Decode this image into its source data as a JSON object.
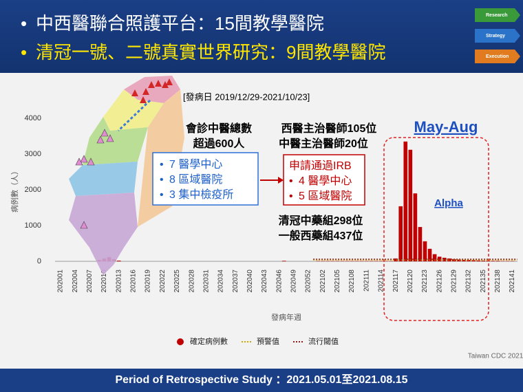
{
  "header": {
    "line1": "中西醫聯合照護平台：15間教學醫院",
    "line2": "清冠一號、二號真實世界研究：9間教學醫院",
    "icons": [
      "Research",
      "Strategy",
      "Execution"
    ]
  },
  "annotations": {
    "period": "[發病日 2019/12/29-2021/10/23]",
    "tcm_total_1": "會診中醫總數",
    "tcm_total_2": "超過600人",
    "box1": [
      "7 醫學中心",
      "8 區域醫院",
      "3 集中檢疫所"
    ],
    "doctors": [
      "西醫主治醫師105位",
      "中醫主治醫師20位"
    ],
    "box2_title": "申請通過IRB",
    "box2": [
      "4 醫學中心",
      "5 區域醫院"
    ],
    "groups": [
      "清冠中藥組298位",
      "一般西藥組437位"
    ],
    "highlight": "May-Aug",
    "variant": "Alpha",
    "source": "Taiwan CDC 2021"
  },
  "footer": "Period of  Retrospective Study ：2021.05.01至2021.08.15",
  "chart_data": {
    "type": "bar",
    "ylabel": "病例數（人）",
    "xlabel": "發病年週",
    "ylim": [
      0,
      4000
    ],
    "yticks": [
      0,
      1000,
      2000,
      3000,
      4000
    ],
    "categories": [
      "202001",
      null,
      null,
      "202004",
      null,
      null,
      "202007",
      null,
      null,
      "202010",
      null,
      null,
      "202013",
      null,
      null,
      "202016",
      null,
      null,
      "202019",
      null,
      null,
      "202022",
      null,
      null,
      "202025",
      null,
      null,
      "202028",
      null,
      null,
      "202031",
      null,
      null,
      "202034",
      null,
      null,
      "202037",
      null,
      null,
      "202040",
      null,
      null,
      "202043",
      null,
      null,
      "202046",
      null,
      null,
      "202049",
      null,
      null,
      "202052",
      null,
      null,
      "202102",
      null,
      null,
      "202105",
      null,
      null,
      "202108",
      null,
      null,
      "202111",
      null,
      null,
      "202114",
      null,
      null,
      "202117",
      null,
      null,
      "202120",
      null,
      null,
      "202123",
      null,
      null,
      "202126",
      null,
      null,
      "202129",
      null,
      null,
      "202132",
      null,
      null,
      "202135",
      null,
      null,
      "202138",
      null,
      null,
      "202141",
      null
    ],
    "series": [
      {
        "name": "確定病例數",
        "type": "bar",
        "color": "#c00000",
        "values": [
          0,
          0,
          0,
          0,
          0,
          0,
          0,
          0,
          40,
          80,
          120,
          60,
          20,
          0,
          0,
          0,
          0,
          0,
          0,
          0,
          0,
          0,
          0,
          0,
          0,
          0,
          0,
          0,
          0,
          0,
          0,
          0,
          0,
          0,
          0,
          0,
          0,
          0,
          0,
          0,
          0,
          0,
          0,
          0,
          0,
          0,
          15,
          0,
          0,
          0,
          0,
          0,
          0,
          10,
          10,
          10,
          10,
          10,
          10,
          10,
          10,
          10,
          10,
          10,
          10,
          10,
          10,
          10,
          10,
          80,
          1540,
          3350,
          3120,
          1900,
          960,
          560,
          350,
          200,
          130,
          100,
          80,
          60,
          50,
          40,
          35,
          30,
          25,
          20,
          20,
          15,
          15,
          10,
          10,
          10,
          0
        ]
      },
      {
        "name": "預警值",
        "type": "line",
        "color": "#c9a800",
        "values": [
          null,
          null,
          null,
          null,
          null,
          null,
          null,
          null,
          null,
          null,
          null,
          null,
          null,
          null,
          null,
          null,
          null,
          null,
          null,
          null,
          null,
          null,
          null,
          null,
          null,
          null,
          null,
          null,
          null,
          null,
          null,
          null,
          null,
          null,
          null,
          null,
          null,
          null,
          null,
          null,
          null,
          null,
          null,
          null,
          null,
          null,
          null,
          null,
          null,
          null,
          null,
          null,
          40,
          40,
          40,
          40,
          40,
          40,
          40,
          40,
          40,
          40,
          40,
          40,
          40,
          40,
          40,
          40,
          40,
          40,
          40,
          40,
          40,
          40,
          40,
          40,
          40,
          40,
          40,
          40,
          40,
          40,
          40,
          40,
          40,
          40,
          40,
          40,
          40,
          40,
          40,
          40,
          40,
          40,
          40
        ]
      },
      {
        "name": "流行閾值",
        "type": "line",
        "color": "#8b1a1a",
        "values": [
          null,
          null,
          null,
          null,
          null,
          null,
          null,
          null,
          null,
          null,
          null,
          null,
          null,
          null,
          null,
          null,
          null,
          null,
          null,
          null,
          null,
          null,
          null,
          null,
          null,
          null,
          null,
          null,
          null,
          null,
          null,
          null,
          null,
          null,
          null,
          null,
          null,
          null,
          null,
          null,
          null,
          null,
          null,
          null,
          null,
          null,
          null,
          null,
          null,
          null,
          null,
          null,
          60,
          60,
          60,
          60,
          60,
          60,
          60,
          60,
          60,
          60,
          60,
          60,
          60,
          60,
          60,
          60,
          60,
          60,
          60,
          60,
          60,
          60,
          60,
          60,
          60,
          60,
          60,
          60,
          60,
          60,
          60,
          60,
          60,
          60,
          60,
          60,
          60,
          60,
          60,
          60,
          60,
          60,
          60
        ]
      }
    ]
  }
}
